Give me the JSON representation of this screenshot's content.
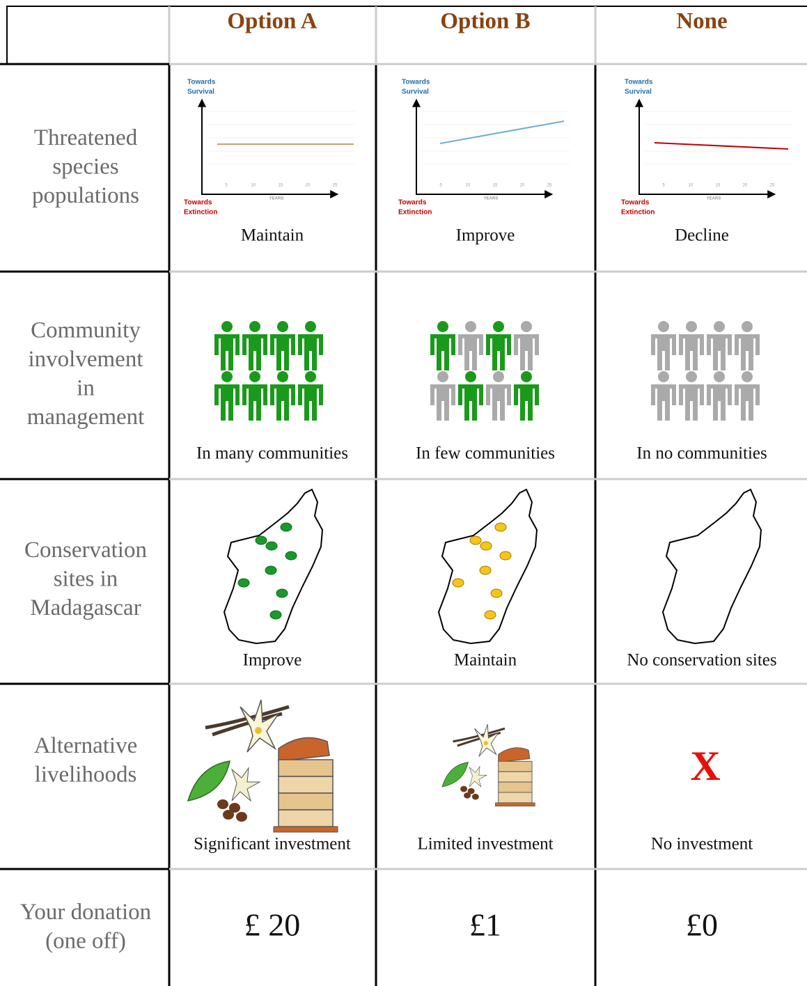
{
  "header": {
    "columns": [
      "Option A",
      "Option B",
      "None"
    ]
  },
  "mini_chart": {
    "y_top": [
      "Towards",
      "Survival"
    ],
    "y_bottom": [
      "Towards",
      "Extinction"
    ],
    "x_label": "YEARS",
    "xticks": [
      5,
      10,
      15,
      20,
      25
    ]
  },
  "rows": [
    {
      "label": [
        "Threatened",
        "species",
        "populations"
      ],
      "cells": [
        "Maintain",
        "Improve",
        "Decline"
      ]
    },
    {
      "label": [
        "Community",
        "involvement",
        "in",
        "management"
      ],
      "cells": [
        "In many communities",
        "In few communities",
        "In no communities"
      ]
    },
    {
      "label": [
        "Conservation",
        "sites in",
        "Madagascar"
      ],
      "cells": [
        "Improve",
        "Maintain",
        "No conservation sites"
      ]
    },
    {
      "label": [
        "Alternative",
        "livelihoods"
      ],
      "cells": [
        "Significant investment",
        "Limited investment",
        "No investment"
      ],
      "none_mark": "X"
    },
    {
      "label": [
        "Your donation",
        "(one off)"
      ],
      "cells": [
        "£ 20",
        "£1",
        "£0"
      ]
    }
  ]
}
